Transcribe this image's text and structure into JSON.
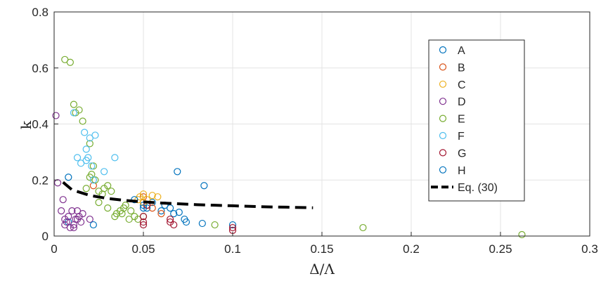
{
  "chart_data": {
    "type": "scatter",
    "title": "",
    "xlabel": "Δ/Λ",
    "ylabel": "k",
    "xlim": [
      0,
      0.3
    ],
    "ylim": [
      0,
      0.8
    ],
    "xticks": [
      0,
      0.05,
      0.1,
      0.15,
      0.2,
      0.25,
      0.3
    ],
    "xtick_labels": [
      "0",
      "0.05",
      "0.1",
      "0.15",
      "0.2",
      "0.25",
      "0.3"
    ],
    "yticks": [
      0,
      0.2,
      0.4,
      0.6,
      0.8
    ],
    "ytick_labels": [
      "0",
      "0.2",
      "0.4",
      "0.6",
      "0.8"
    ],
    "grid": true,
    "legend_position": "right",
    "series": [
      {
        "name": "A",
        "marker": "circle",
        "color": "#0072BD",
        "x": [
          0.008,
          0.05,
          0.052,
          0.055,
          0.06,
          0.065,
          0.067,
          0.07,
          0.073,
          0.1,
          0.083
        ],
        "y": [
          0.05,
          0.11,
          0.1,
          0.12,
          0.09,
          0.1,
          0.08,
          0.085,
          0.06,
          0.04,
          0.045
        ]
      },
      {
        "name": "B",
        "marker": "circle",
        "color": "#D95319",
        "x": [
          0.022,
          0.05,
          0.05,
          0.052,
          0.055,
          0.06
        ],
        "y": [
          0.18,
          0.14,
          0.12,
          0.11,
          0.1,
          0.08
        ]
      },
      {
        "name": "C",
        "marker": "circle",
        "color": "#EDB120",
        "x": [
          0.048,
          0.05,
          0.052,
          0.055,
          0.058,
          0.05,
          0.047
        ],
        "y": [
          0.14,
          0.15,
          0.13,
          0.145,
          0.14,
          0.12,
          0.13
        ]
      },
      {
        "name": "D",
        "marker": "circle",
        "color": "#7E2F8E",
        "x": [
          0.001,
          0.002,
          0.004,
          0.005,
          0.006,
          0.007,
          0.008,
          0.01,
          0.011,
          0.012,
          0.013,
          0.014,
          0.015,
          0.016,
          0.009,
          0.006,
          0.02,
          0.011,
          0.013
        ],
        "y": [
          0.43,
          0.19,
          0.09,
          0.13,
          0.06,
          0.05,
          0.07,
          0.09,
          0.04,
          0.06,
          0.09,
          0.07,
          0.05,
          0.08,
          0.03,
          0.04,
          0.06,
          0.03,
          0.06
        ]
      },
      {
        "name": "E",
        "marker": "circle",
        "color": "#77AC30",
        "x": [
          0.006,
          0.009,
          0.011,
          0.012,
          0.014,
          0.016,
          0.018,
          0.02,
          0.021,
          0.022,
          0.023,
          0.025,
          0.027,
          0.028,
          0.03,
          0.032,
          0.034,
          0.035,
          0.037,
          0.039,
          0.04,
          0.042,
          0.045,
          0.047,
          0.02,
          0.025,
          0.03,
          0.038,
          0.043,
          0.05,
          0.09,
          0.173,
          0.262
        ],
        "y": [
          0.63,
          0.62,
          0.47,
          0.44,
          0.45,
          0.41,
          0.17,
          0.33,
          0.22,
          0.25,
          0.2,
          0.16,
          0.15,
          0.17,
          0.18,
          0.16,
          0.07,
          0.08,
          0.09,
          0.1,
          0.11,
          0.06,
          0.07,
          0.06,
          0.21,
          0.12,
          0.1,
          0.08,
          0.09,
          0.07,
          0.04,
          0.03,
          0.005
        ]
      },
      {
        "name": "F",
        "marker": "circle",
        "color": "#4DBEEE",
        "x": [
          0.011,
          0.013,
          0.015,
          0.017,
          0.018,
          0.019,
          0.02,
          0.021,
          0.022,
          0.023,
          0.034,
          0.028,
          0.018
        ],
        "y": [
          0.44,
          0.28,
          0.26,
          0.37,
          0.31,
          0.28,
          0.35,
          0.25,
          0.2,
          0.36,
          0.28,
          0.23,
          0.27
        ]
      },
      {
        "name": "G",
        "marker": "circle",
        "color": "#A2142F",
        "x": [
          0.05,
          0.05,
          0.05,
          0.052,
          0.065,
          0.065,
          0.067,
          0.1,
          0.1
        ],
        "y": [
          0.07,
          0.05,
          0.04,
          0.11,
          0.06,
          0.05,
          0.04,
          0.02,
          0.03
        ]
      },
      {
        "name": "H",
        "marker": "circle",
        "color": "#0072BD",
        "x": [
          0.008,
          0.022,
          0.05,
          0.069,
          0.084,
          0.045,
          0.062,
          0.074
        ],
        "y": [
          0.21,
          0.04,
          0.1,
          0.23,
          0.18,
          0.13,
          0.11,
          0.05
        ]
      },
      {
        "name": "Eq. (30)",
        "marker": "none",
        "line": "dashed",
        "color": "#000000",
        "x": [
          0.005,
          0.01,
          0.02,
          0.03,
          0.04,
          0.05,
          0.06,
          0.07,
          0.08,
          0.09,
          0.1,
          0.11,
          0.12,
          0.13,
          0.145
        ],
        "y": [
          0.192,
          0.165,
          0.145,
          0.134,
          0.127,
          0.122,
          0.118,
          0.115,
          0.112,
          0.11,
          0.108,
          0.106,
          0.104,
          0.103,
          0.101
        ]
      }
    ]
  }
}
